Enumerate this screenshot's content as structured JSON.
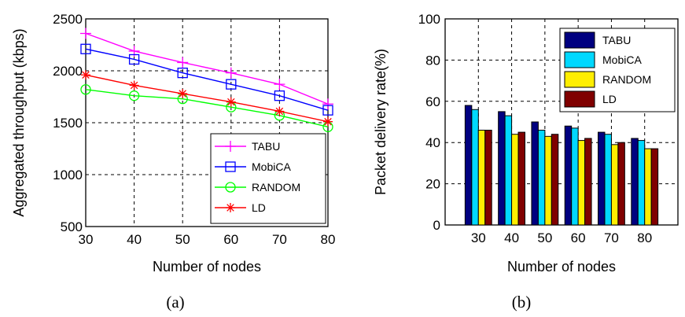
{
  "chart_data": [
    {
      "type": "line",
      "panel_caption": "(a)",
      "title": "",
      "xlabel": "Number of nodes",
      "ylabel": "Aggregated throughput (kbps)",
      "x": [
        30,
        40,
        50,
        60,
        70,
        80
      ],
      "xlim": [
        30,
        80
      ],
      "ylim": [
        500,
        2500
      ],
      "x_ticks": [
        "30",
        "40",
        "50",
        "60",
        "70",
        "80"
      ],
      "y_ticks": [
        "500",
        "1000",
        "1500",
        "2000",
        "2500"
      ],
      "grid": true,
      "legend_position": "bottom-right",
      "series": [
        {
          "name": "TABU",
          "color": "#ff00ff",
          "marker": "plus",
          "values": [
            2360,
            2190,
            2080,
            1980,
            1870,
            1680
          ]
        },
        {
          "name": "MobiCA",
          "color": "#0000ff",
          "marker": "square",
          "values": [
            2210,
            2110,
            1980,
            1870,
            1760,
            1620
          ]
        },
        {
          "name": "RANDOM",
          "color": "#00ff00",
          "marker": "circle",
          "values": [
            1820,
            1760,
            1730,
            1650,
            1570,
            1460
          ]
        },
        {
          "name": "LD",
          "color": "#ff0000",
          "marker": "star",
          "values": [
            1960,
            1860,
            1780,
            1700,
            1610,
            1510
          ]
        }
      ]
    },
    {
      "type": "bar",
      "panel_caption": "(b)",
      "title": "",
      "xlabel": "Number of nodes",
      "ylabel": "Packet delivery rate(%)",
      "categories": [
        "30",
        "40",
        "50",
        "60",
        "70",
        "80"
      ],
      "ylim": [
        0,
        100
      ],
      "y_ticks": [
        "0",
        "20",
        "40",
        "60",
        "80",
        "100"
      ],
      "grid": true,
      "legend_position": "top-right",
      "series": [
        {
          "name": "TABU",
          "color": "#000080",
          "values": [
            58,
            55,
            50,
            48,
            45,
            42
          ]
        },
        {
          "name": "MobiCA",
          "color": "#00d8ff",
          "values": [
            56,
            53,
            46,
            47,
            44,
            41
          ]
        },
        {
          "name": "RANDOM",
          "color": "#ffee00",
          "values": [
            46,
            44,
            43,
            41,
            39,
            37
          ]
        },
        {
          "name": "LD",
          "color": "#800000",
          "values": [
            46,
            45,
            44,
            42,
            40,
            37
          ]
        }
      ]
    }
  ]
}
